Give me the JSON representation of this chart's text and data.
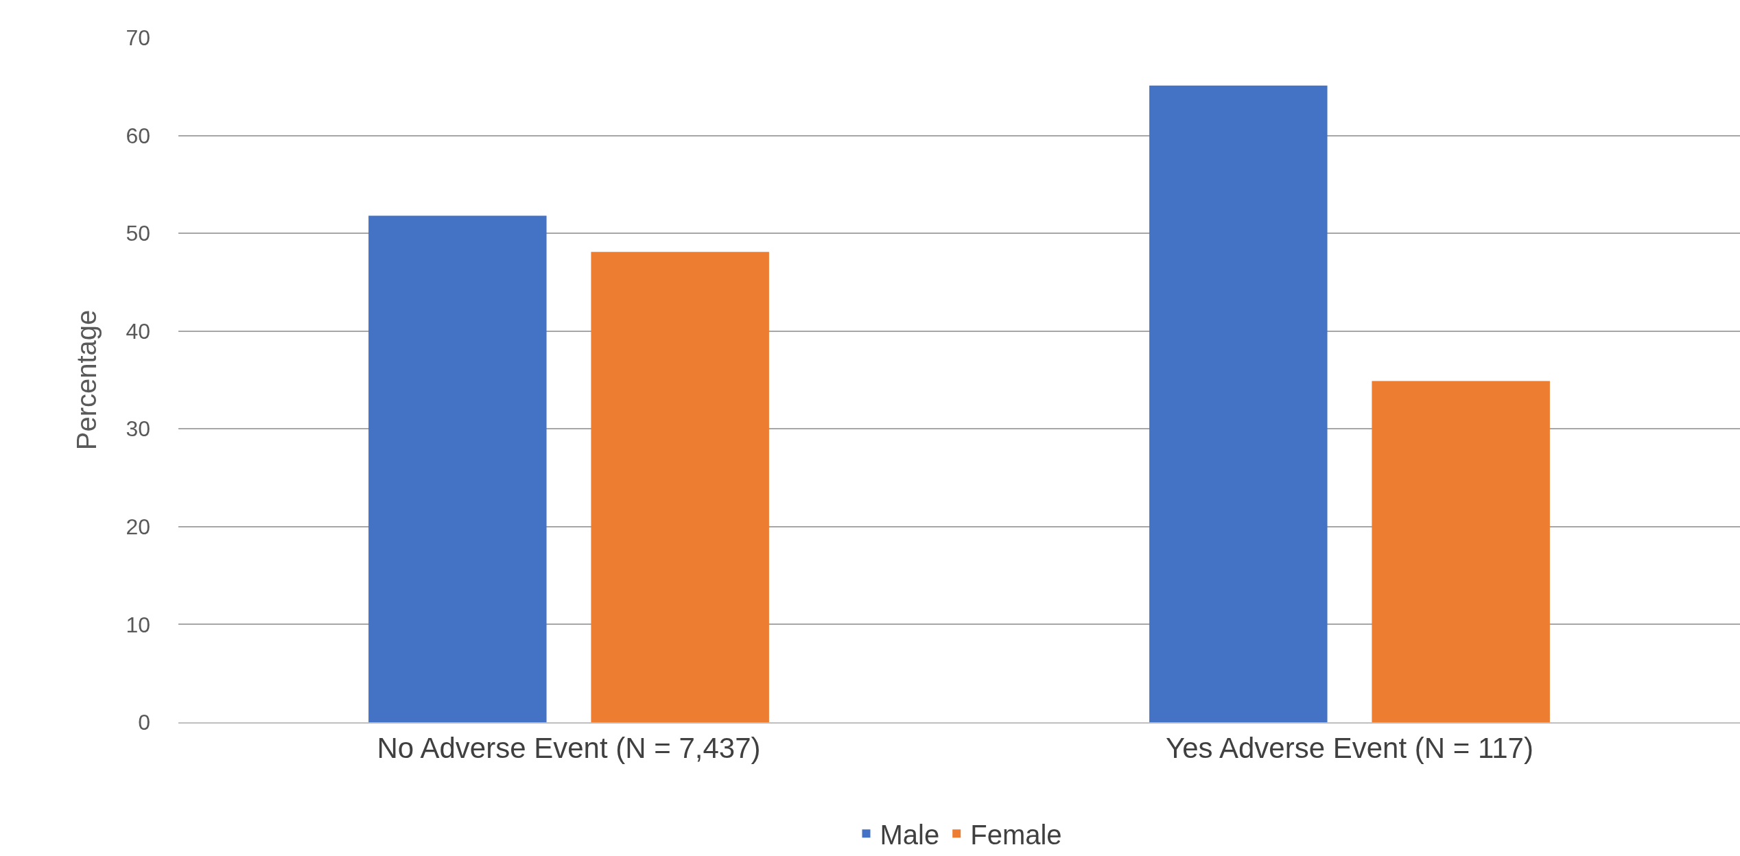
{
  "chart_data": {
    "type": "bar",
    "ylabel": "Percentage",
    "categories": [
      "No Adverse Event (N = 7,437)",
      "Yes Adverse Event (N = 117)"
    ],
    "series": [
      {
        "name": "Male",
        "color": "#4472c4",
        "values": [
          51.8,
          65.1
        ]
      },
      {
        "name": "Female",
        "color": "#ed7d31",
        "values": [
          48.1,
          34.9
        ]
      }
    ],
    "ylim": [
      0,
      70
    ],
    "yticks": [
      0,
      10,
      20,
      30,
      40,
      50,
      60,
      70
    ],
    "grid": "y",
    "legend": "bottom"
  }
}
